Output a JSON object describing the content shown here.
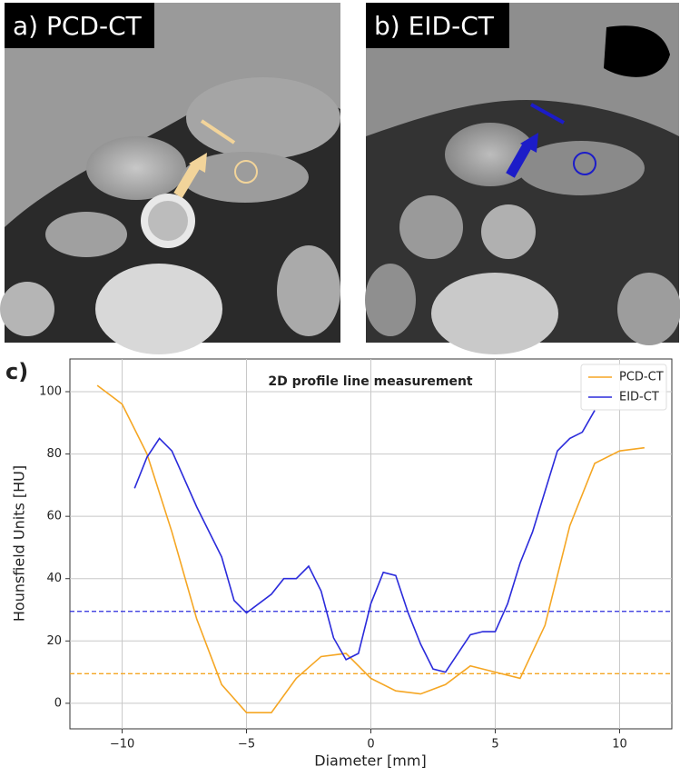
{
  "panels": [
    {
      "label": "a) PCD-CT"
    },
    {
      "label": "b) EID-CT"
    }
  ],
  "chart_label": "c)",
  "chart_data": {
    "type": "line",
    "title": "2D profile line measurement",
    "x_label": "Diameter [mm]",
    "y_label": "Hounsfield Units [HU]",
    "xlim": [
      -12.1,
      12.1
    ],
    "ylim": [
      -8.2,
      110.5
    ],
    "xticks": [
      {
        "value": -10,
        "label": "−10"
      },
      {
        "value": -5,
        "label": "−5"
      },
      0,
      5,
      10
    ],
    "yticks": [
      0,
      20,
      40,
      60,
      80,
      100
    ],
    "grid": true,
    "legend": "upper right",
    "series": [
      {
        "name": "PCD-CT",
        "color": "#f5a623",
        "x": [
          -11,
          -10,
          -9,
          -8,
          -7,
          -6,
          -5,
          -4,
          -3,
          -2,
          -1,
          0,
          1,
          2,
          3,
          4,
          5,
          6,
          7,
          8,
          9,
          10,
          11
        ],
        "values": [
          102,
          96,
          80,
          55,
          27,
          6,
          -3,
          -3,
          8,
          15,
          16,
          8,
          4,
          3,
          6,
          12,
          10,
          8,
          25,
          57,
          77,
          81,
          82
        ]
      },
      {
        "name": "EID-CT",
        "color": "#2b2bdb",
        "x": [
          -9.5,
          -9,
          -8.5,
          -8,
          -7,
          -6,
          -5.5,
          -5,
          -4,
          -3.5,
          -3,
          -2.5,
          -2,
          -1.5,
          -1,
          -0.5,
          0,
          0.5,
          1,
          1.5,
          2,
          2.5,
          3,
          4,
          4.5,
          5,
          5.5,
          6,
          6.5,
          7,
          7.5,
          8,
          8.5,
          9
        ],
        "values": [
          69,
          79,
          85,
          81,
          63,
          47,
          33,
          29,
          35,
          40,
          40,
          44,
          36,
          21,
          14,
          16,
          32,
          42,
          41,
          29,
          19,
          11,
          10,
          22,
          23,
          23,
          32,
          45,
          55,
          68,
          81,
          85,
          87,
          94
        ]
      }
    ],
    "reference_lines": [
      {
        "value": 29.5,
        "color": "#2b2bdb"
      },
      {
        "value": 9.5,
        "color": "#f5a623"
      }
    ]
  }
}
